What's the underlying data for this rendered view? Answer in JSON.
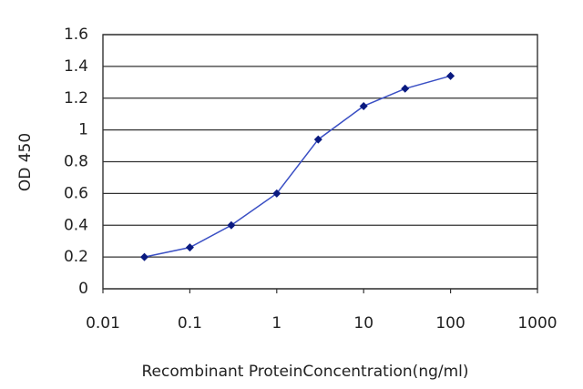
{
  "chart_data": {
    "type": "line",
    "x_label": "Recombinant ProteinConcentration(ng/ml)",
    "y_label": "OD 450",
    "x": [
      0.03,
      0.1,
      0.3,
      1,
      3,
      10,
      30,
      100
    ],
    "series": [
      {
        "color": "#3a4fc4",
        "marker_color": "#0a1a80",
        "values": [
          0.2,
          0.26,
          0.4,
          0.6,
          0.94,
          1.15,
          1.26,
          1.34
        ]
      }
    ],
    "xlim": [
      0.01,
      1000
    ],
    "xticks": [
      0.01,
      0.1,
      1,
      10,
      100,
      1000
    ],
    "x_scale": "log",
    "ylim": [
      0,
      1.6
    ],
    "yticks": [
      0,
      0.2,
      0.4,
      0.6,
      0.8,
      1,
      1.2,
      1.4,
      1.6
    ],
    "grid": true
  }
}
